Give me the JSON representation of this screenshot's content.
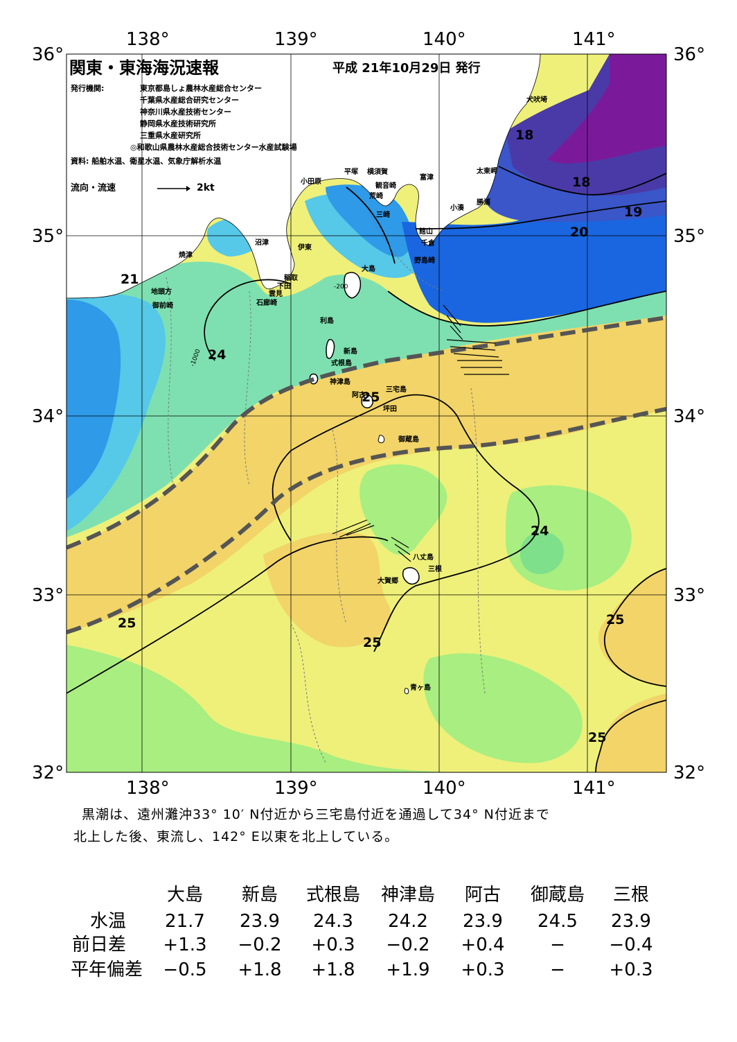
{
  "title": "関東・東海海況速報",
  "issue_date": "平成 21年10月29日 発行",
  "issuer_label": "発行機関:",
  "issuers": [
    "東京都島しょ農林水産総合センター",
    "千葉県水産総合研究センター",
    "神奈川県水産技術センター",
    "静岡県水産技術研究所",
    "三重県水産研究所",
    "◎和歌山県農林水産総合技術センター水産試験場"
  ],
  "source": "資料: 船舶水温、衛星水温、気象庁解析水温",
  "legend": {
    "label": "流向・流速",
    "scale": "2kt"
  },
  "axes": {
    "lon_ticks": [
      "138°",
      "139°",
      "140°",
      "141°"
    ],
    "lat_ticks": [
      "36°",
      "35°",
      "34°",
      "33°",
      "32°"
    ]
  },
  "places": [
    "犬吠埼",
    "太東岬",
    "勝浦",
    "小湊",
    "富津",
    "横須賀",
    "観音崎",
    "平塚",
    "荒崎",
    "三崎",
    "小田原",
    "館山",
    "千倉",
    "野島崎",
    "沼津",
    "伊東",
    "焼津",
    "稲取",
    "下田",
    "雲見",
    "石廊崎",
    "地頭方",
    "御前崎",
    "大島",
    "利島",
    "新島",
    "式根島",
    "神津島",
    "阿古",
    "三宅島",
    "坪田",
    "御蔵島",
    "八丈島",
    "三根",
    "大賀郷",
    "青ヶ島"
  ],
  "isotherm_labels": [
    "18",
    "18",
    "19",
    "20",
    "21",
    "24",
    "25",
    "24",
    "25",
    "25",
    "25",
    "25"
  ],
  "depth_labels": [
    "-200",
    "-1000"
  ],
  "colors": {
    "land": "#ffffff",
    "temp_17": "#7a1a9a",
    "temp_18": "#4a3aa8",
    "temp_19": "#3a56c8",
    "temp_20": "#1a66e0",
    "temp_21": "#2e9ae8",
    "temp_22": "#56c8e8",
    "temp_23": "#7ee0b0",
    "temp_24": "#a8ee80",
    "temp_24_5": "#eef07a",
    "temp_25": "#f2d468",
    "kuroshio_axis": "#555555"
  },
  "summary": [
    "黒潮は、遠州灘沖33° 10′ N付近から三宅島付近を通過して34° N付近まで",
    "北上した後、東流し、142° E以東を北上している。"
  ],
  "table": {
    "columns": [
      "大島",
      "新島",
      "式根島",
      "神津島",
      "阿古",
      "御蔵島",
      "三根"
    ],
    "rows": [
      {
        "label": "水温",
        "values": [
          "21.7",
          "23.9",
          "24.3",
          "24.2",
          "23.9",
          "24.5",
          "23.9"
        ]
      },
      {
        "label": "前日差",
        "values": [
          "+1.3",
          "−0.2",
          "+0.3",
          "−0.2",
          "+0.4",
          "−",
          "−0.4"
        ]
      },
      {
        "label": "平年偏差",
        "values": [
          "−0.5",
          "+1.8",
          "+1.8",
          "+1.9",
          "+0.3",
          "−",
          "+0.3"
        ]
      }
    ]
  }
}
